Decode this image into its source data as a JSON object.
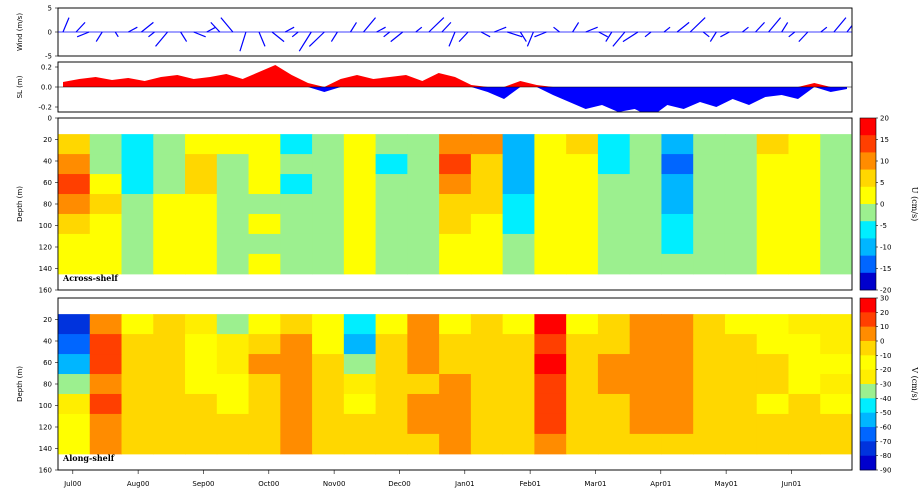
{
  "chart_data": [
    {
      "type": "quiver",
      "panel": "wind",
      "ylabel": "Wind (m/s)",
      "yticks": [
        5,
        0,
        -5
      ],
      "ylim": [
        -5,
        5
      ],
      "series": [
        {
          "name": "",
          "color": "#0000ff",
          "x": [
            0,
            0.2,
            0.4,
            0.6,
            0.8,
            1,
            1.2,
            1.4,
            1.6,
            1.8,
            2,
            2.2,
            2.4,
            2.6,
            2.8,
            3,
            3.2,
            3.4,
            3.6,
            3.8,
            4,
            4.2,
            4.4,
            4.6,
            4.8,
            5,
            5.2,
            5.4,
            5.6,
            5.8,
            6,
            6.2,
            6.4,
            6.6,
            6.8,
            7,
            7.2,
            7.4,
            7.6,
            7.8,
            8,
            8.2,
            8.4,
            8.6,
            8.8,
            9,
            9.2,
            9.4,
            9.6,
            9.8,
            10,
            10.2,
            10.4,
            10.6,
            10.8,
            11,
            11.2,
            11.4,
            11.6,
            11.8,
            12
          ],
          "u": [
            1,
            1.5,
            -2,
            -1,
            0.5,
            1.5,
            2,
            -1,
            -2,
            1,
            2,
            1.5,
            -1.5,
            -2,
            -1,
            1,
            2,
            1.5,
            -1,
            -2,
            -2.5,
            -1,
            1,
            2,
            1.5,
            -1,
            -2,
            1,
            2.5,
            1.5,
            -1,
            -1.5,
            1.5,
            2,
            2.5,
            1,
            -1,
            -2,
            -1,
            1,
            2,
            1.5,
            -1,
            -2,
            -2.5,
            -1,
            1,
            2,
            2.5,
            1,
            -1,
            -1.5,
            1,
            1.5,
            2,
            1,
            -1,
            -1.5,
            1,
            2,
            2.5
          ],
          "v": [
            3,
            2,
            -1,
            -2,
            -1,
            1,
            2,
            -1,
            -3,
            -2,
            -1,
            1,
            2,
            3,
            -4,
            -3,
            -2,
            1,
            -1,
            -4,
            -3,
            -2,
            2,
            3,
            1,
            -1,
            -2,
            1,
            3,
            2,
            -3,
            -2,
            -1,
            1,
            -1,
            -2,
            -3,
            -1,
            1,
            2,
            1,
            -1,
            -2,
            -3,
            -2,
            -1,
            1,
            2,
            3,
            -1,
            -2,
            -1,
            1,
            2,
            3,
            2,
            -1,
            -2,
            1,
            3,
            4
          ]
        }
      ]
    },
    {
      "type": "area",
      "panel": "sea-level",
      "ylabel": "SL (m)",
      "yticks": [
        0.2,
        0.0,
        -0.2
      ],
      "ylim": [
        -0.25,
        0.25
      ],
      "x": [
        0,
        0.25,
        0.5,
        0.75,
        1,
        1.25,
        1.5,
        1.75,
        2,
        2.25,
        2.5,
        2.75,
        3,
        3.25,
        3.5,
        3.75,
        4,
        4.25,
        4.5,
        4.75,
        5,
        5.25,
        5.5,
        5.75,
        6,
        6.25,
        6.5,
        6.75,
        7,
        7.25,
        7.5,
        7.75,
        8,
        8.25,
        8.5,
        8.75,
        9,
        9.25,
        9.5,
        9.75,
        10,
        10.25,
        10.5,
        10.75,
        11,
        11.25,
        11.5,
        11.75,
        12
      ],
      "values": [
        0.05,
        0.08,
        0.1,
        0.07,
        0.09,
        0.06,
        0.1,
        0.12,
        0.08,
        0.1,
        0.13,
        0.08,
        0.15,
        0.22,
        0.12,
        0.04,
        -0.05,
        0.08,
        0.12,
        0.08,
        0.1,
        0.12,
        0.06,
        0.14,
        0.1,
        0.02,
        -0.05,
        -0.12,
        0.06,
        0.02,
        -0.08,
        -0.15,
        -0.22,
        -0.18,
        -0.25,
        -0.22,
        -0.3,
        -0.18,
        -0.22,
        -0.15,
        -0.2,
        -0.12,
        -0.18,
        -0.1,
        -0.08,
        -0.12,
        0.04,
        -0.05,
        -0.02
      ],
      "positive_color": "#ff0000",
      "negative_color": "#0000ff"
    },
    {
      "type": "heatmap",
      "panel": "across-shelf",
      "label": "Across-shelf",
      "ylabel": "Depth (m)",
      "yticks": [
        0,
        20,
        40,
        60,
        80,
        100,
        120,
        140,
        160
      ],
      "ylim": [
        160,
        0
      ],
      "colorbar_label": "U (cm/s)",
      "colorbar_ticks": [
        "20",
        "15",
        "10",
        "5",
        "0",
        "-5",
        "-10",
        "-15",
        "-20"
      ],
      "colorbar_colors": [
        "#ff0000",
        "#ff3f00",
        "#ff8c00",
        "#ffd700",
        "#ffff00",
        "#9cf08f",
        "#00eeff",
        "#00b6ff",
        "#0066ff",
        "#0000cc"
      ],
      "xlabels": [
        "Jul00",
        "Aug00",
        "Sep00",
        "Oct00",
        "Nov00",
        "Dec00",
        "Jan01",
        "Feb01",
        "Mar01",
        "Apr01",
        "May01",
        "Jun01"
      ],
      "rows": [
        [
          5,
          -1,
          -5,
          -2,
          4,
          2,
          3,
          -4,
          -1,
          2,
          -3,
          -1,
          10,
          12,
          -8,
          2,
          5,
          -5,
          -3,
          -10,
          -2,
          -1,
          5,
          3,
          -1
        ],
        [
          12,
          -2,
          -5,
          0,
          5,
          -1,
          2,
          -3,
          -2,
          3,
          -4,
          -1,
          15,
          8,
          -10,
          3,
          4,
          -4,
          -2,
          -12,
          -1,
          -2,
          3,
          2,
          -2
        ],
        [
          15,
          3,
          -4,
          -1,
          6,
          -2,
          1,
          -4,
          -3,
          1,
          -2,
          0,
          12,
          6,
          -8,
          1,
          3,
          -3,
          -1,
          -10,
          -2,
          -1,
          2,
          4,
          -1
        ],
        [
          10,
          5,
          -3,
          2,
          4,
          -1,
          0,
          -3,
          -2,
          2,
          -3,
          -1,
          8,
          5,
          -5,
          2,
          2,
          -2,
          -2,
          -8,
          -1,
          -2,
          3,
          2,
          -1
        ],
        [
          8,
          2,
          -2,
          1,
          3,
          -2,
          1,
          -2,
          -1,
          1,
          -2,
          0,
          5,
          3,
          -4,
          1,
          1,
          -1,
          -1,
          -5,
          -1,
          -1,
          2,
          1,
          -2
        ],
        [
          3,
          1,
          -1,
          2,
          2,
          -1,
          0,
          -1,
          -2,
          1,
          -1,
          -1,
          3,
          2,
          -2,
          2,
          2,
          -2,
          -1,
          -4,
          0,
          -1,
          1,
          2,
          -1
        ],
        [
          1,
          1,
          -2,
          3,
          1,
          -2,
          1,
          -1,
          -1,
          2,
          -1,
          -1,
          2,
          1,
          -1,
          1,
          1,
          -1,
          -1,
          -2,
          -1,
          -2,
          2,
          1,
          -1
        ]
      ]
    },
    {
      "type": "heatmap",
      "panel": "along-shelf",
      "label": "Along-shelf",
      "ylabel": "Depth (m)",
      "yticks": [
        20,
        40,
        60,
        80,
        100,
        120,
        140,
        160
      ],
      "ylim": [
        160,
        0
      ],
      "colorbar_label": "V (cm/s)",
      "colorbar_ticks": [
        "30",
        "20",
        "10",
        "0",
        "-10",
        "-20",
        "-30",
        "-40",
        "-50",
        "-60",
        "-70",
        "-80",
        "-90"
      ],
      "colorbar_colors": [
        "#ff0000",
        "#ff3f00",
        "#ff8c00",
        "#ffd700",
        "#ffff00",
        "#ffee00",
        "#9cf08f",
        "#00eeff",
        "#00b6ff",
        "#0066ff",
        "#0033dd",
        "#0000cc"
      ],
      "xlabels": [
        "Jul00",
        "Aug00",
        "Sep00",
        "Oct00",
        "Nov00",
        "Dec00",
        "Jan01",
        "Feb01",
        "Mar01",
        "Apr01",
        "May01",
        "Jun01"
      ],
      "rows": [
        [
          -70,
          10,
          -10,
          -5,
          -20,
          -30,
          -10,
          -5,
          -15,
          -40,
          -10,
          5,
          -10,
          -5,
          -10,
          25,
          -10,
          -5,
          10,
          5,
          -5,
          -10,
          -15,
          -20,
          -25
        ],
        [
          -60,
          15,
          -5,
          -8,
          -15,
          -25,
          -5,
          5,
          -10,
          -50,
          -5,
          10,
          -5,
          -2,
          -5,
          20,
          -5,
          0,
          10,
          8,
          -3,
          -8,
          -10,
          -15,
          -20
        ],
        [
          -50,
          12,
          -5,
          -5,
          -10,
          -20,
          5,
          8,
          -5,
          -30,
          -5,
          5,
          0,
          -5,
          -5,
          22,
          -5,
          5,
          5,
          10,
          -5,
          -5,
          -5,
          -10,
          -15
        ],
        [
          -30,
          10,
          -3,
          -5,
          -10,
          -15,
          0,
          5,
          -5,
          -20,
          0,
          0,
          5,
          -3,
          -3,
          20,
          -2,
          5,
          5,
          5,
          -2,
          -5,
          -5,
          -10,
          -20
        ],
        [
          -20,
          15,
          -2,
          -3,
          -5,
          -10,
          -5,
          5,
          -3,
          -10,
          -5,
          5,
          5,
          -2,
          -5,
          18,
          -3,
          0,
          5,
          5,
          -5,
          -5,
          -10,
          -5,
          -10
        ],
        [
          -15,
          10,
          -5,
          -2,
          -5,
          -5,
          -2,
          8,
          -2,
          -5,
          -5,
          3,
          5,
          0,
          -3,
          15,
          -3,
          0,
          5,
          3,
          -5,
          -3,
          -5,
          -5,
          -8
        ],
        [
          -10,
          8,
          -5,
          -5,
          -5,
          -5,
          -5,
          5,
          -5,
          -5,
          -3,
          0,
          5,
          -5,
          -5,
          10,
          -5,
          -5,
          0,
          0,
          -5,
          -5,
          -5,
          -5,
          -5
        ]
      ]
    }
  ],
  "xaxis_labels": [
    "Jul00",
    "Aug00",
    "Sep00",
    "Oct00",
    "Nov00",
    "Dec00",
    "Jan01",
    "Feb01",
    "Mar01",
    "Apr01",
    "May01",
    "Jun01"
  ]
}
